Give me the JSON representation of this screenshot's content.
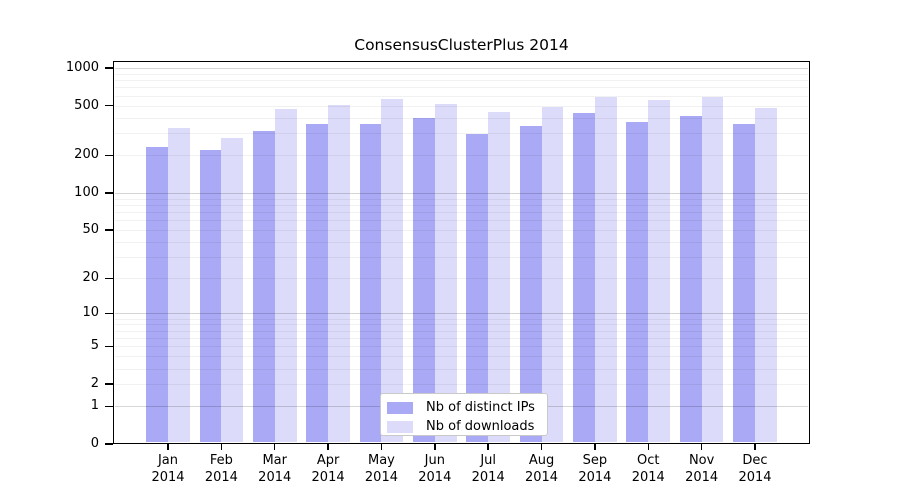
{
  "chart_data": {
    "type": "bar",
    "title": "ConsensusClusterPlus 2014",
    "categories": [
      "Jan",
      "Feb",
      "Mar",
      "Apr",
      "May",
      "Jun",
      "Jul",
      "Aug",
      "Sep",
      "Oct",
      "Nov",
      "Dec"
    ],
    "year_label": "2014",
    "series": [
      {
        "name": "Nb of distinct IPs",
        "color": "#a9a9f5",
        "values": [
          235,
          220,
          315,
          355,
          360,
          395,
          295,
          345,
          435,
          370,
          415,
          355
        ]
      },
      {
        "name": "Nb of downloads",
        "color": "#dcdcfa",
        "values": [
          330,
          275,
          470,
          505,
          570,
          515,
          445,
          490,
          590,
          550,
          585,
          475
        ]
      }
    ],
    "y_axis": {
      "scale": "log(v+1)",
      "ylim": [
        0,
        1000
      ],
      "ticks": [
        {
          "label": "1000",
          "value": 1000
        },
        {
          "label": "500",
          "value": 500
        },
        {
          "label": "200",
          "value": 200
        },
        {
          "label": "100",
          "value": 100
        },
        {
          "label": "50",
          "value": 50
        },
        {
          "label": "20",
          "value": 20
        },
        {
          "label": "10",
          "value": 10
        },
        {
          "label": "5",
          "value": 5
        },
        {
          "label": "2",
          "value": 2
        },
        {
          "label": "1",
          "value": 1
        },
        {
          "label": "0",
          "value": 0
        }
      ]
    },
    "grid": true,
    "legend_position": "bottom-center",
    "colors": {
      "axis": "#000000",
      "grid_minor": "rgba(0,0,0,0.055)",
      "grid_major": "rgba(0,0,0,0.16)"
    }
  }
}
